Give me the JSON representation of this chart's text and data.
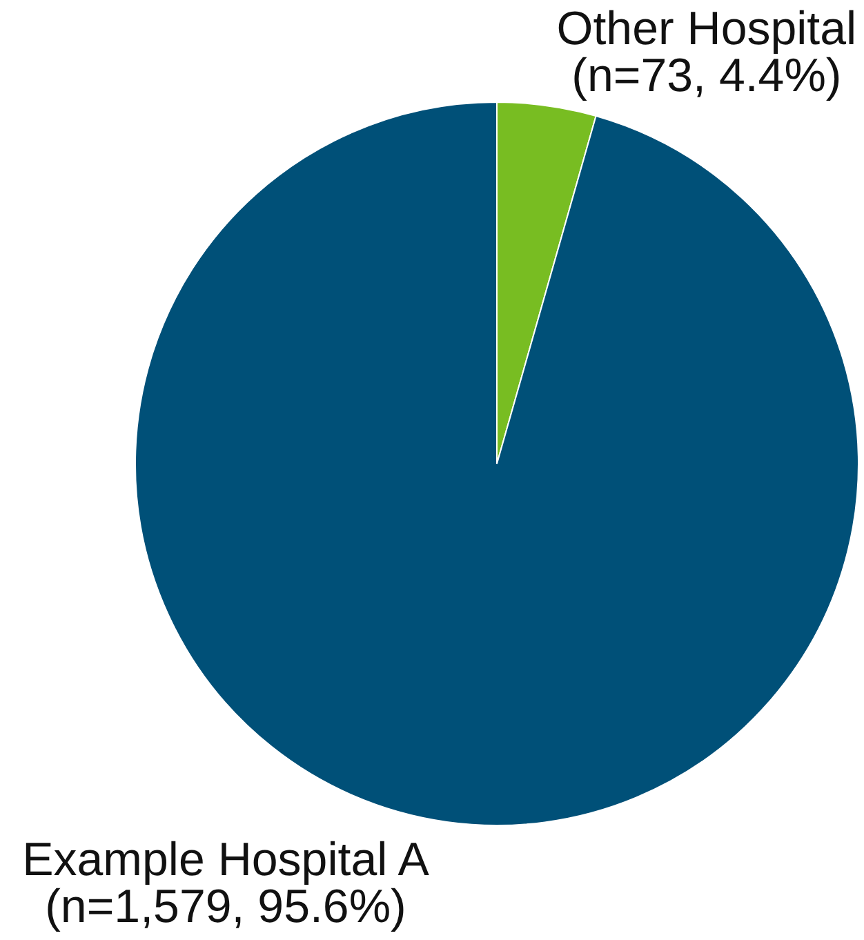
{
  "chart_data": {
    "type": "pie",
    "categories": [
      "Other Hospital",
      "Example Hospital A"
    ],
    "values": [
      73,
      1579
    ],
    "colors": [
      "#78bd22",
      "#005078"
    ],
    "value_labels": [
      "(n=73, 4.4%)",
      "(n=1,579, 95.6%)"
    ]
  }
}
